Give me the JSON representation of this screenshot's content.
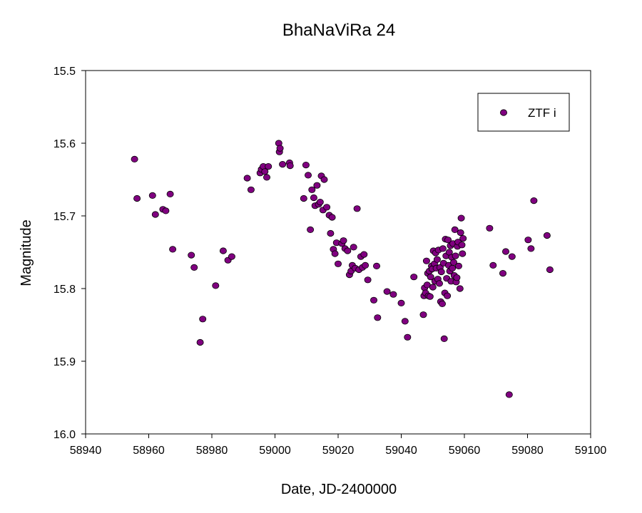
{
  "chart_data": {
    "type": "scatter",
    "title": "BhaNaViRa 24",
    "xlabel": "Date, JD-2400000",
    "ylabel": "Magnitude",
    "xlim": [
      58940,
      59100
    ],
    "ylim": [
      15.5,
      16.0
    ],
    "y_inverted": true,
    "xticks": [
      58940,
      58960,
      58980,
      59000,
      59020,
      59040,
      59060,
      59080,
      59100
    ],
    "yticks": [
      15.5,
      15.6,
      15.7,
      15.8,
      15.9,
      16.0
    ],
    "xtick_labels": [
      "58940",
      "58960",
      "58980",
      "59000",
      "59020",
      "59040",
      "59060",
      "59080",
      "59100"
    ],
    "ytick_labels": [
      "15.5",
      "15.6",
      "15.7",
      "15.8",
      "15.9",
      "16.0"
    ],
    "grid": false,
    "legend_position": "top-right",
    "marker_color": "#800080",
    "series": [
      {
        "name": "ZTF i",
        "points": [
          [
            58955.5,
            15.622
          ],
          [
            58956.3,
            15.676
          ],
          [
            58961.2,
            15.672
          ],
          [
            58962.1,
            15.698
          ],
          [
            58964.5,
            15.691
          ],
          [
            58965.4,
            15.693
          ],
          [
            58966.8,
            15.67
          ],
          [
            58967.6,
            15.746
          ],
          [
            58973.5,
            15.754
          ],
          [
            58974.4,
            15.771
          ],
          [
            58976.3,
            15.874
          ],
          [
            58977.1,
            15.842
          ],
          [
            58981.2,
            15.796
          ],
          [
            58983.6,
            15.748
          ],
          [
            58985.1,
            15.761
          ],
          [
            58986.3,
            15.756
          ],
          [
            58991.2,
            15.648
          ],
          [
            58992.4,
            15.664
          ],
          [
            58995.3,
            15.641
          ],
          [
            58995.7,
            15.636
          ],
          [
            58996.3,
            15.632
          ],
          [
            58996.8,
            15.639
          ],
          [
            58997.4,
            15.647
          ],
          [
            58997.9,
            15.632
          ],
          [
            59001.2,
            15.6
          ],
          [
            59001.4,
            15.612
          ],
          [
            59001.6,
            15.607
          ],
          [
            59002.4,
            15.629
          ],
          [
            59004.6,
            15.627
          ],
          [
            59004.8,
            15.631
          ],
          [
            59009.1,
            15.676
          ],
          [
            59009.8,
            15.63
          ],
          [
            59010.5,
            15.644
          ],
          [
            59011.2,
            15.719
          ],
          [
            59011.7,
            15.664
          ],
          [
            59012.3,
            15.675
          ],
          [
            59012.7,
            15.686
          ],
          [
            59013.3,
            15.658
          ],
          [
            59013.8,
            15.684
          ],
          [
            59014.3,
            15.681
          ],
          [
            59014.7,
            15.645
          ],
          [
            59015.2,
            15.692
          ],
          [
            59015.6,
            15.65
          ],
          [
            59016.4,
            15.688
          ],
          [
            59017.2,
            15.699
          ],
          [
            59017.6,
            15.724
          ],
          [
            59018.1,
            15.702
          ],
          [
            59018.5,
            15.746
          ],
          [
            59019.0,
            15.752
          ],
          [
            59019.5,
            15.737
          ],
          [
            59020.0,
            15.766
          ],
          [
            59021.2,
            15.738
          ],
          [
            59021.7,
            15.734
          ],
          [
            59022.2,
            15.745
          ],
          [
            59023.0,
            15.748
          ],
          [
            59023.6,
            15.781
          ],
          [
            59024.1,
            15.776
          ],
          [
            59024.5,
            15.768
          ],
          [
            59024.9,
            15.743
          ],
          [
            59025.4,
            15.772
          ],
          [
            59026.0,
            15.69
          ],
          [
            59026.6,
            15.774
          ],
          [
            59027.2,
            15.756
          ],
          [
            59027.7,
            15.771
          ],
          [
            59028.2,
            15.753
          ],
          [
            59028.6,
            15.768
          ],
          [
            59029.4,
            15.788
          ],
          [
            59031.3,
            15.816
          ],
          [
            59032.2,
            15.769
          ],
          [
            59032.5,
            15.84
          ],
          [
            59035.5,
            15.804
          ],
          [
            59037.5,
            15.808
          ],
          [
            59040.0,
            15.82
          ],
          [
            59041.2,
            15.845
          ],
          [
            59042.0,
            15.867
          ],
          [
            59044.0,
            15.784
          ],
          [
            59047.0,
            15.836
          ],
          [
            59047.2,
            15.81
          ],
          [
            59047.4,
            15.799
          ],
          [
            59047.7,
            15.806
          ],
          [
            59048.0,
            15.762
          ],
          [
            59048.2,
            15.795
          ],
          [
            59048.4,
            15.779
          ],
          [
            59048.6,
            15.81
          ],
          [
            59048.9,
            15.776
          ],
          [
            59049.1,
            15.811
          ],
          [
            59049.3,
            15.784
          ],
          [
            59049.6,
            15.769
          ],
          [
            59049.8,
            15.773
          ],
          [
            59050.0,
            15.798
          ],
          [
            59050.2,
            15.748
          ],
          [
            59050.5,
            15.766
          ],
          [
            59050.7,
            15.79
          ],
          [
            59050.9,
            15.751
          ],
          [
            59051.1,
            15.772
          ],
          [
            59051.4,
            15.76
          ],
          [
            59051.6,
            15.787
          ],
          [
            59051.8,
            15.747
          ],
          [
            59052.1,
            15.793
          ],
          [
            59052.3,
            15.771
          ],
          [
            59052.5,
            15.818
          ],
          [
            59052.7,
            15.777
          ],
          [
            59053.0,
            15.821
          ],
          [
            59053.2,
            15.745
          ],
          [
            59053.4,
            15.765
          ],
          [
            59053.6,
            15.869
          ],
          [
            59053.8,
            15.806
          ],
          [
            59054.0,
            15.732
          ],
          [
            59054.2,
            15.755
          ],
          [
            59054.4,
            15.786
          ],
          [
            59054.6,
            15.81
          ],
          [
            59054.8,
            15.733
          ],
          [
            59055.0,
            15.768
          ],
          [
            59055.2,
            15.75
          ],
          [
            59055.4,
            15.776
          ],
          [
            59055.6,
            15.741
          ],
          [
            59055.8,
            15.79
          ],
          [
            59056.0,
            15.757
          ],
          [
            59056.2,
            15.772
          ],
          [
            59056.4,
            15.738
          ],
          [
            59056.6,
            15.764
          ],
          [
            59056.8,
            15.782
          ],
          [
            59057.0,
            15.719
          ],
          [
            59057.2,
            15.755
          ],
          [
            59057.4,
            15.791
          ],
          [
            59057.6,
            15.785
          ],
          [
            59057.8,
            15.742
          ],
          [
            59058.0,
            15.736
          ],
          [
            59058.2,
            15.769
          ],
          [
            59058.6,
            15.8
          ],
          [
            59058.8,
            15.723
          ],
          [
            59059.0,
            15.703
          ],
          [
            59059.2,
            15.74
          ],
          [
            59059.4,
            15.752
          ],
          [
            59059.6,
            15.731
          ],
          [
            59068.0,
            15.717
          ],
          [
            59069.1,
            15.768
          ],
          [
            59072.2,
            15.779
          ],
          [
            59073.1,
            15.749
          ],
          [
            59074.2,
            15.946
          ],
          [
            59075.1,
            15.756
          ],
          [
            59080.2,
            15.733
          ],
          [
            59081.1,
            15.745
          ],
          [
            59082.0,
            15.679
          ],
          [
            59086.2,
            15.727
          ],
          [
            59087.1,
            15.774
          ]
        ]
      }
    ]
  }
}
